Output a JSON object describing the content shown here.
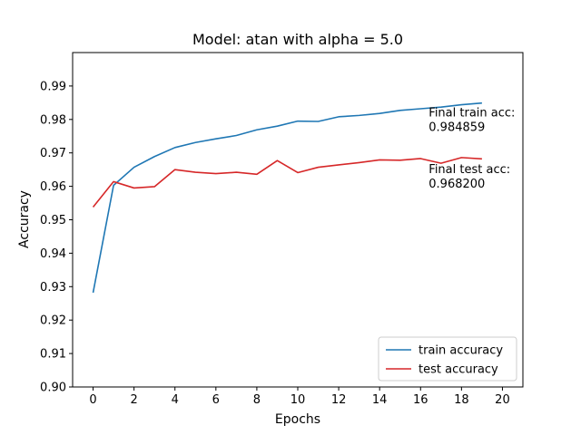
{
  "chart_data": {
    "type": "line",
    "title": "Model: atan with alpha = 5.0",
    "xlabel": "Epochs",
    "ylabel": "Accuracy",
    "xlim": [
      -1,
      21
    ],
    "ylim": [
      0.9,
      1.0
    ],
    "xticks": [
      0,
      2,
      4,
      6,
      8,
      10,
      12,
      14,
      16,
      18,
      20
    ],
    "yticks": [
      0.9,
      0.91,
      0.92,
      0.93,
      0.94,
      0.95,
      0.96,
      0.97,
      0.98,
      0.99
    ],
    "xtick_labels": [
      "0",
      "2",
      "4",
      "6",
      "8",
      "10",
      "12",
      "14",
      "16",
      "18",
      "20"
    ],
    "ytick_labels": [
      "0.90",
      "0.91",
      "0.92",
      "0.93",
      "0.94",
      "0.95",
      "0.96",
      "0.97",
      "0.98",
      "0.99"
    ],
    "grid": false,
    "legend_position": "lower-right",
    "x": [
      0,
      1,
      2,
      3,
      4,
      5,
      6,
      7,
      8,
      9,
      10,
      11,
      12,
      13,
      14,
      15,
      16,
      17,
      18,
      19
    ],
    "series": [
      {
        "name": "train accuracy",
        "color": "#1f77b4",
        "values": [
          0.9282,
          0.9603,
          0.9657,
          0.9689,
          0.9716,
          0.9731,
          0.9742,
          0.9752,
          0.9769,
          0.978,
          0.9795,
          0.9794,
          0.9808,
          0.9812,
          0.9818,
          0.9827,
          0.9832,
          0.9837,
          0.9844,
          0.9849
        ]
      },
      {
        "name": "test accuracy",
        "color": "#d62728",
        "values": [
          0.9538,
          0.9614,
          0.9595,
          0.9599,
          0.965,
          0.9642,
          0.9638,
          0.9642,
          0.9636,
          0.9677,
          0.9641,
          0.9657,
          0.9664,
          0.9671,
          0.9679,
          0.9678,
          0.9683,
          0.9669,
          0.9686,
          0.9682
        ]
      }
    ],
    "annotations": [
      {
        "lines": [
          "Final train acc:",
          "0.984859"
        ],
        "x": 16.4,
        "y": 0.9809
      },
      {
        "lines": [
          "Final test acc:",
          "0.968200"
        ],
        "x": 16.4,
        "y": 0.964
      }
    ]
  }
}
